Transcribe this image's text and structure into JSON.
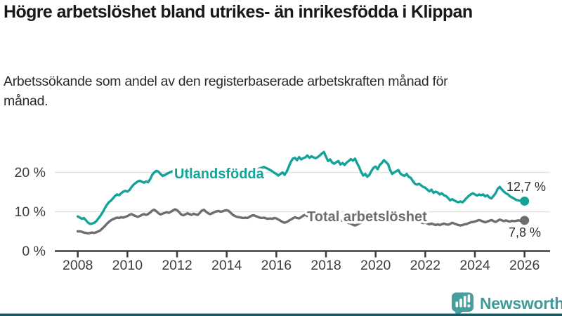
{
  "chart_data": {
    "type": "line",
    "title": "Högre arbetslöshet bland utrikes- än inrikesfödda i Klippan",
    "subtitle": "Arbetssökande som andel av den registerbaserade arbetskraften månad för månad.",
    "xlim": [
      2008,
      2026
    ],
    "ylim": [
      0,
      26
    ],
    "grid": "horizontal",
    "x_ticks": [
      2008,
      2010,
      2012,
      2014,
      2016,
      2018,
      2020,
      2022,
      2024,
      2026
    ],
    "y_ticks": [
      {
        "value": 0,
        "label": "0 %"
      },
      {
        "value": 10,
        "label": "10 %"
      },
      {
        "value": 20,
        "label": "20 %"
      }
    ],
    "series": [
      {
        "name": "Utlandsfödda",
        "color": "#14a39a",
        "end_label": "12,7 %",
        "start_year": 2008,
        "points_per_year": 12,
        "values": [
          8.8,
          8.5,
          8.2,
          8.4,
          7.8,
          7.2,
          6.9,
          7.0,
          7.2,
          7.6,
          8.3,
          9.0,
          9.8,
          10.8,
          11.7,
          12.4,
          12.8,
          13.4,
          14.0,
          14.4,
          14.2,
          14.7,
          15.1,
          15.3,
          15.1,
          15.5,
          16.3,
          16.9,
          17.3,
          17.7,
          17.9,
          17.6,
          17.4,
          17.7,
          17.5,
          18.3,
          19.4,
          20.0,
          20.4,
          20.2,
          19.6,
          19.1,
          19.3,
          19.6,
          19.9,
          20.1,
          20.3,
          20.5,
          20.2,
          19.9,
          19.7,
          19.5,
          19.4,
          19.6,
          19.8,
          20.0,
          20.1,
          20.3,
          20.4,
          20.5,
          20.6,
          20.4,
          20.1,
          19.8,
          19.7,
          19.9,
          20.0,
          20.2,
          20.3,
          20.1,
          20.0,
          20.2,
          20.4,
          20.2,
          19.9,
          19.6,
          19.5,
          19.7,
          19.8,
          20.0,
          20.2,
          20.1,
          19.9,
          20.1,
          20.3,
          20.5,
          20.6,
          20.8,
          21.0,
          21.2,
          21.4,
          21.1,
          20.9,
          20.6,
          20.3,
          19.9,
          19.6,
          19.2,
          19.6,
          20.0,
          19.4,
          20.2,
          21.4,
          22.7,
          23.5,
          23.7,
          23.1,
          23.9,
          23.3,
          23.6,
          23.8,
          24.3,
          23.7,
          24.1,
          23.8,
          23.6,
          23.9,
          24.3,
          24.8,
          25.2,
          24.0,
          22.9,
          23.3,
          22.5,
          22.2,
          22.6,
          22.9,
          22.0,
          22.4,
          21.9,
          22.5,
          22.9,
          23.4,
          23.0,
          23.5,
          22.4,
          21.4,
          20.1,
          19.2,
          19.6,
          18.9,
          19.4,
          20.4,
          21.2,
          21.5,
          20.8,
          21.9,
          22.4,
          23.1,
          22.6,
          22.1,
          20.6,
          19.6,
          20.0,
          20.3,
          20.6,
          19.7,
          19.3,
          19.1,
          19.6,
          18.9,
          18.6,
          17.8,
          17.1,
          16.9,
          17.1,
          16.7,
          16.3,
          16.1,
          15.6,
          15.2,
          15.6,
          14.8,
          15.1,
          14.9,
          14.4,
          14.7,
          14.2,
          14.0,
          13.5,
          12.9,
          13.2,
          12.9,
          12.6,
          12.4,
          12.6,
          12.4,
          12.9,
          13.5,
          14.0,
          14.4,
          14.7,
          14.4,
          14.1,
          14.4,
          14.2,
          14.4,
          13.9,
          14.2,
          13.6,
          13.4,
          14.0,
          14.7,
          15.8,
          16.3,
          15.7,
          15.1,
          14.7,
          14.4,
          13.9,
          13.6,
          13.3,
          13.0,
          12.9,
          12.8,
          12.7,
          12.7
        ]
      },
      {
        "name": "Total arbetslöshet",
        "color": "#6d6d72",
        "end_label": "7,8 %",
        "start_year": 2008,
        "points_per_year": 12,
        "values": [
          5.0,
          5.0,
          4.9,
          4.7,
          4.6,
          4.5,
          4.6,
          4.7,
          4.6,
          4.8,
          5.0,
          5.3,
          5.8,
          6.3,
          6.9,
          7.4,
          7.8,
          8.1,
          8.3,
          8.5,
          8.4,
          8.6,
          8.5,
          8.7,
          8.9,
          9.2,
          9.4,
          9.1,
          8.9,
          8.7,
          8.9,
          9.2,
          9.4,
          9.2,
          9.4,
          9.8,
          10.3,
          10.5,
          10.1,
          9.6,
          9.3,
          9.5,
          9.7,
          9.9,
          9.7,
          10.0,
          10.3,
          10.6,
          10.4,
          9.9,
          9.3,
          9.1,
          9.3,
          9.6,
          9.4,
          9.2,
          9.5,
          9.3,
          9.2,
          9.7,
          10.3,
          10.5,
          10.0,
          9.6,
          9.4,
          9.6,
          9.9,
          10.1,
          10.2,
          10.0,
          10.1,
          10.3,
          10.4,
          10.2,
          9.7,
          9.2,
          8.9,
          8.7,
          8.6,
          8.5,
          8.4,
          8.5,
          8.4,
          8.7,
          9.0,
          9.1,
          8.9,
          8.7,
          8.5,
          8.4,
          8.5,
          8.3,
          8.2,
          8.3,
          8.2,
          8.4,
          8.3,
          8.0,
          7.7,
          7.4,
          7.2,
          7.4,
          7.7,
          8.0,
          8.3,
          8.6,
          8.4,
          8.3,
          8.6,
          9.0,
          9.2,
          8.9,
          8.8,
          8.7,
          8.9,
          8.8,
          8.7,
          8.8,
          8.9,
          8.8,
          8.8,
          8.6,
          8.5,
          8.3,
          8.2,
          8.0,
          7.9,
          7.8,
          7.7,
          7.5,
          7.3,
          7.1,
          7.0,
          6.7,
          6.5,
          6.7,
          7.0,
          7.2,
          7.4,
          7.6,
          7.7,
          7.8,
          7.9,
          8.0,
          8.1,
          8.4,
          8.7,
          9.2,
          9.5,
          9.8,
          9.9,
          9.8,
          9.7,
          9.5,
          9.4,
          9.2,
          9.1,
          8.9,
          8.7,
          8.5,
          8.3,
          8.1,
          8.0,
          7.8,
          7.7,
          7.5,
          7.3,
          7.1,
          7.2,
          7.0,
          6.8,
          7.0,
          6.8,
          6.6,
          6.8,
          6.6,
          6.8,
          7.0,
          6.8,
          6.7,
          6.9,
          7.2,
          7.0,
          6.8,
          6.6,
          6.5,
          6.6,
          6.8,
          6.9,
          7.1,
          7.3,
          7.4,
          7.5,
          7.7,
          7.9,
          7.7,
          7.5,
          7.3,
          7.5,
          7.7,
          7.9,
          7.6,
          7.4,
          7.7,
          8.0,
          7.8,
          7.6,
          7.8,
          7.6,
          7.5,
          7.7,
          7.6,
          7.7,
          7.8,
          7.7,
          7.8,
          7.8
        ]
      }
    ],
    "legend_position": "inline-on-lines"
  },
  "footer": {
    "brand": "Newsworthy"
  },
  "colors": {
    "accent_teal": "#14a39a",
    "series_gray": "#6d6d72",
    "axis": "#3a3a3a",
    "grid": "#e1e1e1",
    "logo_teal": "#44a09c",
    "bottom_bar": "#1a5b6a"
  }
}
